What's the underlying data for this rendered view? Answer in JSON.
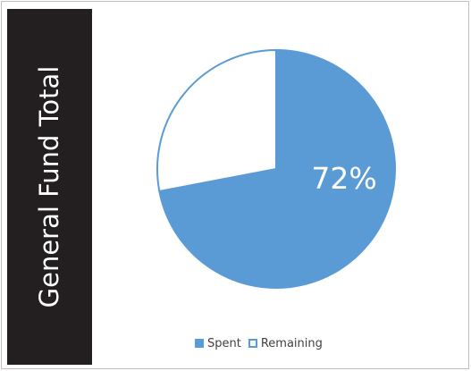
{
  "chart_data": {
    "type": "pie",
    "side_title": "General Fund Total",
    "title": "",
    "slices": [
      {
        "name": "Spent",
        "value": 72,
        "data_label": "72%"
      },
      {
        "name": "Remaining",
        "value": 28,
        "data_label": ""
      }
    ],
    "legend": {
      "placement": "bottom",
      "entries": [
        "Spent",
        "Remaining"
      ]
    },
    "colors": {
      "spent_fill": "#5b9bd5",
      "remaining_fill": "#ffffff",
      "slice_stroke": "#5b9bd5",
      "side_band": "#231f20",
      "data_label_text": "#ffffff",
      "legend_text": "#404040"
    }
  }
}
